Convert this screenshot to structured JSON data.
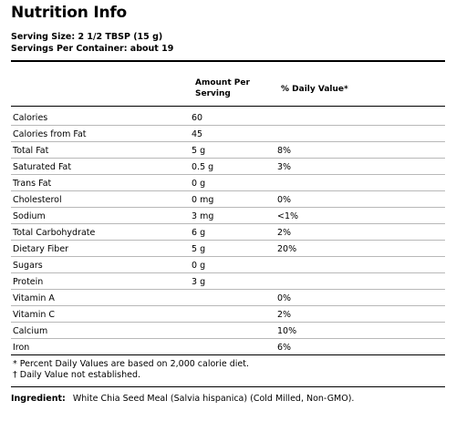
{
  "title": "Nutrition Info",
  "serving_size": "Serving Size: 2 1/2 TBSP (15 g)",
  "servings_per_container": "Servings Per Container: about 19",
  "headers": {
    "amount_line1": "Amount Per",
    "amount_line2": "Serving",
    "daily_value": "% Daily Value*"
  },
  "rows": [
    {
      "name": "Calories",
      "amount": "60",
      "dv": ""
    },
    {
      "name": "Calories from Fat",
      "amount": "45",
      "dv": ""
    },
    {
      "name": "Total Fat",
      "amount": "5 g",
      "dv": "8%"
    },
    {
      "name": "Saturated Fat",
      "amount": "0.5 g",
      "dv": "3%"
    },
    {
      "name": "Trans Fat",
      "amount": "0 g",
      "dv": ""
    },
    {
      "name": "Cholesterol",
      "amount": "0 mg",
      "dv": "0%"
    },
    {
      "name": "Sodium",
      "amount": "3 mg",
      "dv": "<1%"
    },
    {
      "name": "Total Carbohydrate",
      "amount": "6 g",
      "dv": "2%"
    },
    {
      "name": "Dietary Fiber",
      "amount": "5 g",
      "dv": "20%"
    },
    {
      "name": "Sugars",
      "amount": "0 g",
      "dv": ""
    },
    {
      "name": "Protein",
      "amount": "3 g",
      "dv": ""
    },
    {
      "name": "Vitamin A",
      "amount": "",
      "dv": "0%"
    },
    {
      "name": "Vitamin C",
      "amount": "",
      "dv": "2%"
    },
    {
      "name": "Calcium",
      "amount": "",
      "dv": "10%"
    },
    {
      "name": "Iron",
      "amount": "",
      "dv": "6%"
    }
  ],
  "footnotes": {
    "percent_note": "* Percent Daily Values are based on 2,000 calorie diet.",
    "dagger_note": "† Daily Value not established."
  },
  "ingredient": {
    "label": "Ingredient:",
    "text": "White Chia Seed Meal (Salvia hispanica) (Cold Milled, Non-GMO)."
  }
}
